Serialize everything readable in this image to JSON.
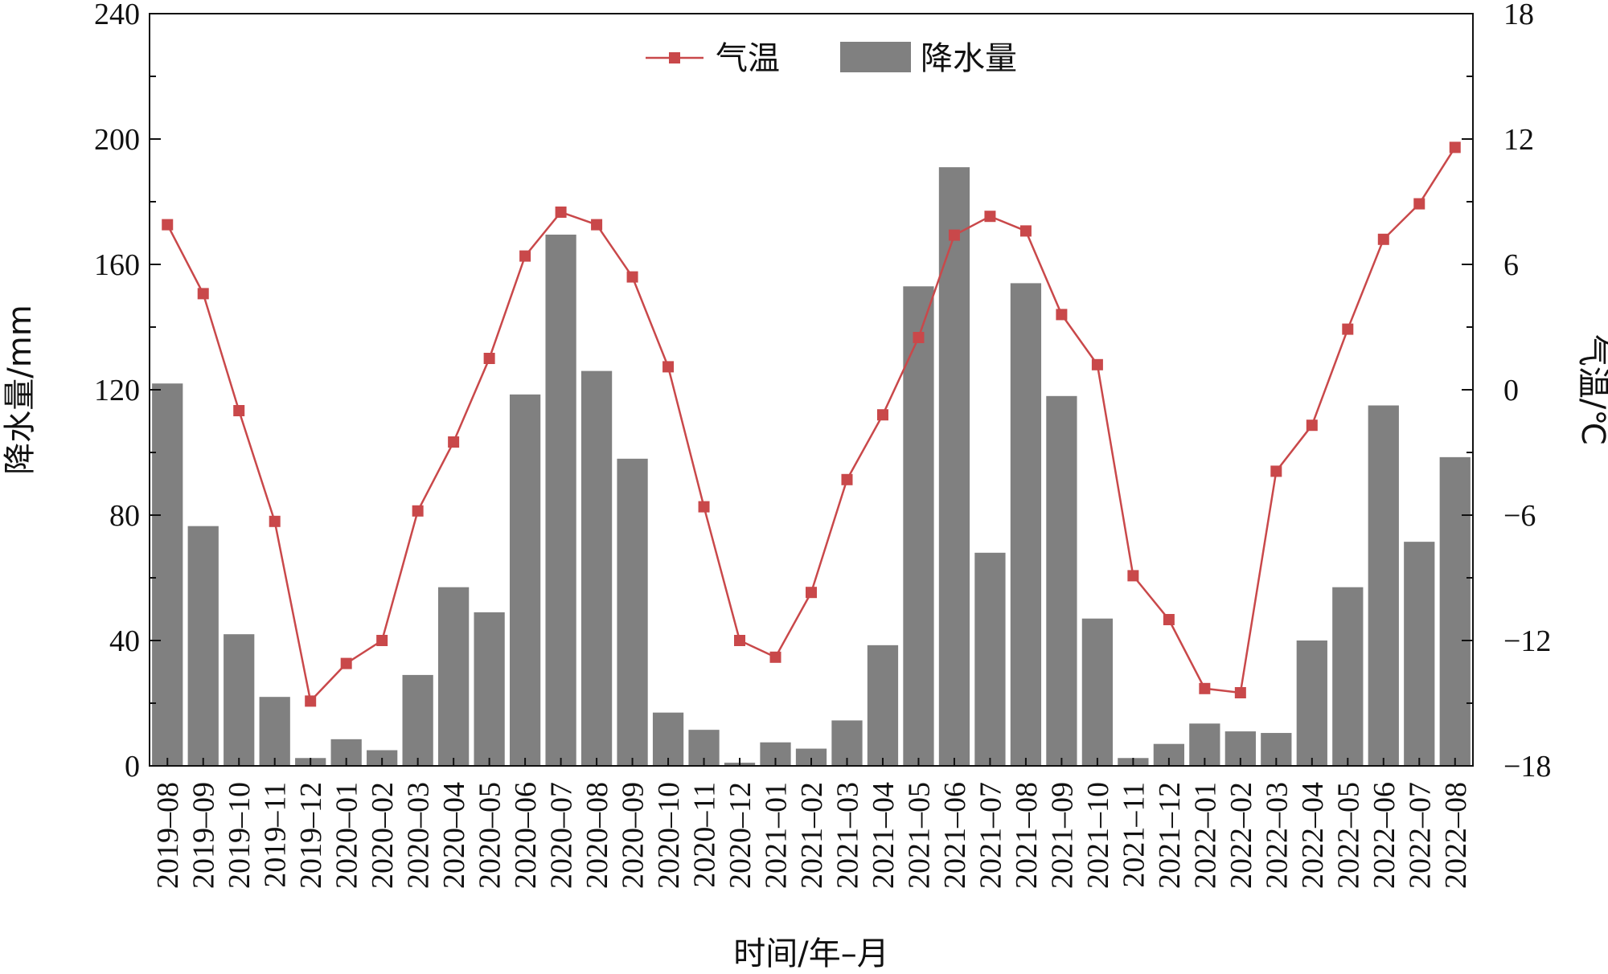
{
  "chart_data": {
    "type": "bar",
    "categories": [
      "2019–08",
      "2019–09",
      "2019–10",
      "2019–11",
      "2019–12",
      "2020–01",
      "2020–02",
      "2020–03",
      "2020–04",
      "2020–05",
      "2020–06",
      "2020–07",
      "2020–08",
      "2020–09",
      "2020–10",
      "2020–11",
      "2020–12",
      "2021–01",
      "2021–02",
      "2021–03",
      "2021–04",
      "2021–05",
      "2021–06",
      "2021–07",
      "2021–08",
      "2021–09",
      "2021–10",
      "2021–11",
      "2021–12",
      "2022–01",
      "2022–02",
      "2022–03",
      "2022–04",
      "2022–05",
      "2022–06",
      "2022–07",
      "2022–08"
    ],
    "series": [
      {
        "name": "降水量",
        "type": "bar",
        "axis": "left",
        "color": "#808080",
        "values": [
          122,
          76.5,
          42,
          22,
          2.5,
          8.5,
          5,
          29,
          57,
          49,
          118.5,
          169.5,
          126,
          98,
          17,
          11.5,
          1,
          7.5,
          5.5,
          14.5,
          38.5,
          153,
          191,
          68,
          154,
          118,
          47,
          2.5,
          7,
          13.5,
          11,
          10.5,
          40,
          57,
          115,
          71.5,
          98.5
        ]
      },
      {
        "name": "气温",
        "type": "line",
        "axis": "right",
        "color": "#c9484a",
        "marker": "square",
        "values": [
          7.9,
          4.6,
          -1.0,
          -6.3,
          -14.9,
          -13.1,
          -12.0,
          -5.8,
          -2.5,
          1.5,
          6.4,
          8.5,
          7.9,
          5.4,
          1.1,
          -5.6,
          -12.0,
          -12.8,
          -9.7,
          -4.3,
          -1.2,
          2.5,
          7.4,
          8.3,
          7.6,
          3.6,
          1.2,
          -8.9,
          -11.0,
          -14.3,
          -14.5,
          -3.9,
          -1.7,
          2.9,
          7.2,
          8.9,
          11.6
        ]
      }
    ],
    "xlabel": "时间/年–月",
    "ylabel": "降水量/mm",
    "ylabel_right": "气温/℃",
    "ylim": [
      0,
      240
    ],
    "ylim_right": [
      -18,
      18
    ],
    "yticks": [
      "0",
      "40",
      "80",
      "120",
      "160",
      "200",
      "240"
    ],
    "yticks_right": [
      "−18",
      "−12",
      "−6",
      "0",
      "6",
      "12",
      "18"
    ],
    "legend_position": "top-center",
    "grid": false
  }
}
